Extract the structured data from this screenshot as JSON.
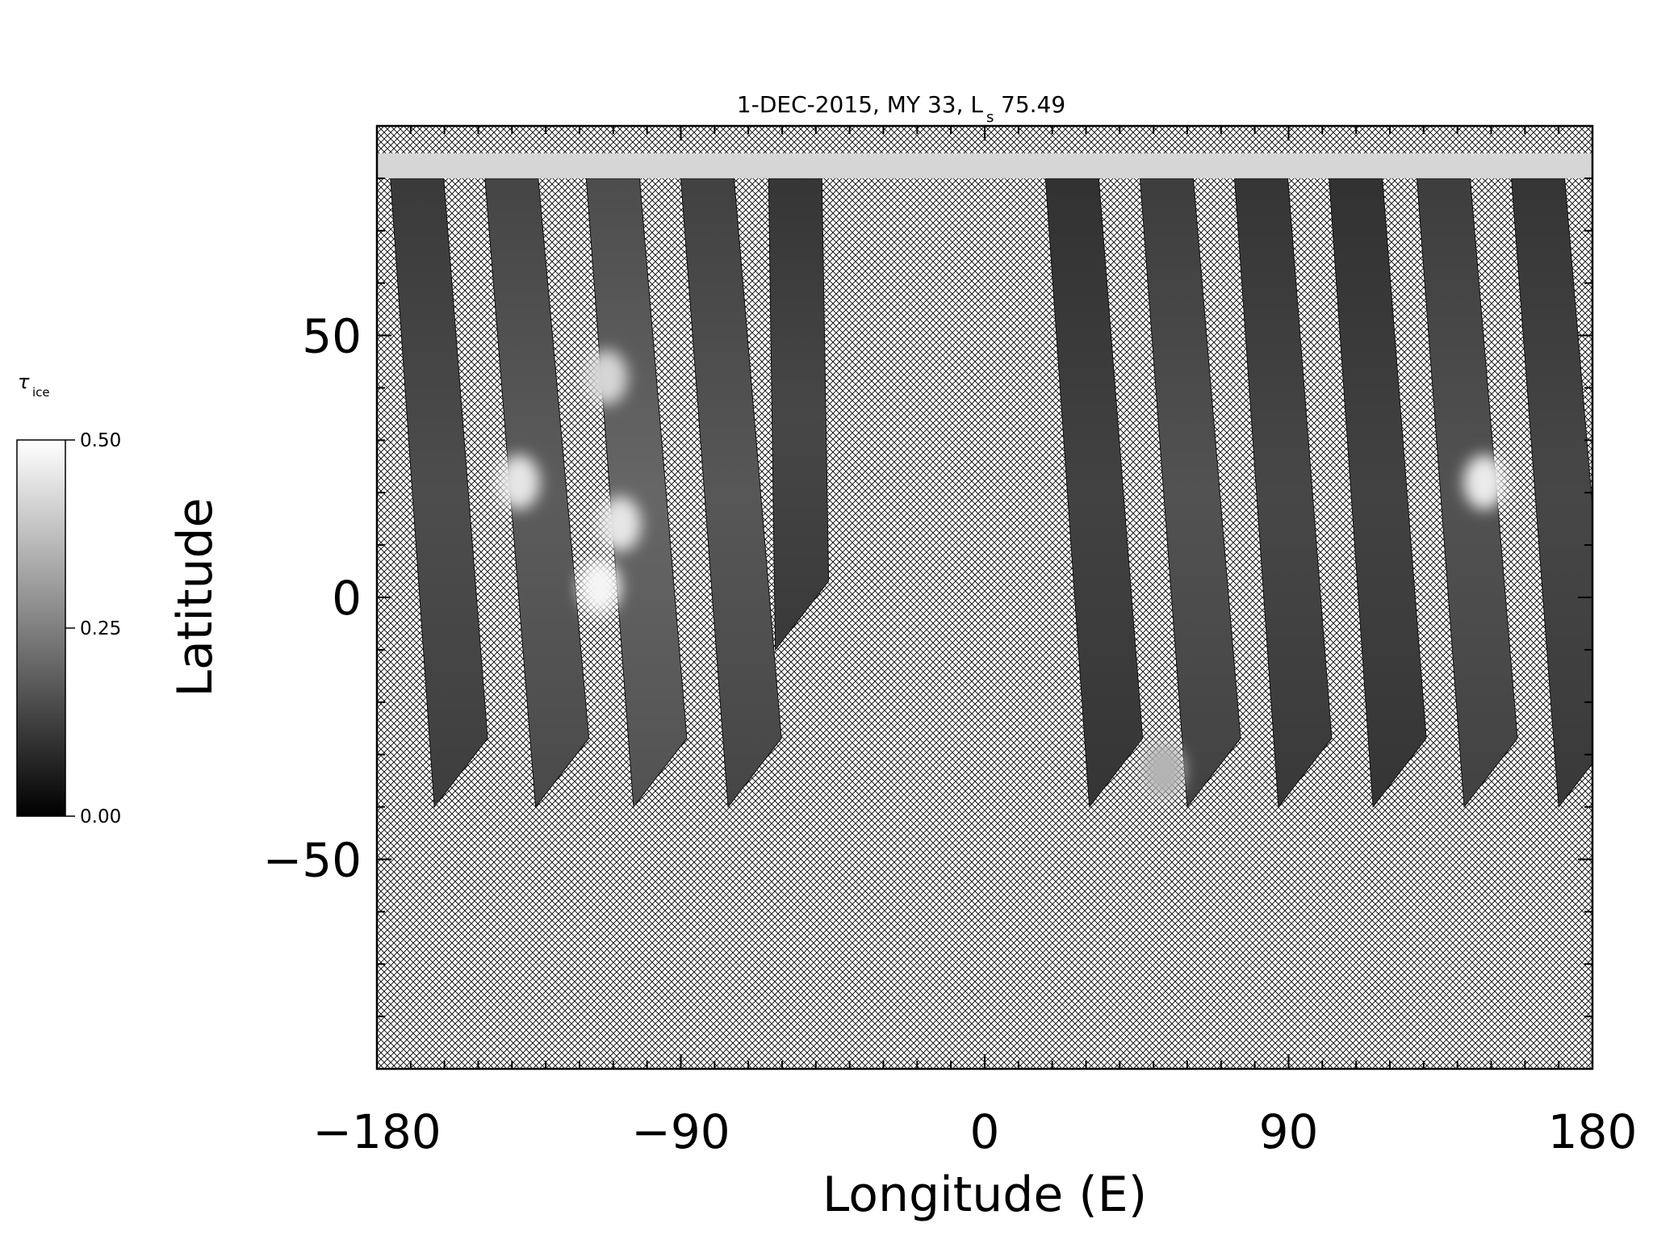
{
  "chart_data": {
    "type": "heatmap",
    "title": "1-DEC-2015, MY 33,  L",
    "title_subscript": "s",
    "title_value": "75.49",
    "xlabel": "Longitude (E)",
    "ylabel": "Latitude",
    "xlim": [
      -180,
      180
    ],
    "ylim": [
      -90,
      90
    ],
    "xticks": [
      {
        "value": -180,
        "label": "−180"
      },
      {
        "value": -90,
        "label": "−90"
      },
      {
        "value": 0,
        "label": "0"
      },
      {
        "value": 90,
        "label": "90"
      },
      {
        "value": 180,
        "label": "180"
      }
    ],
    "yticks": [
      {
        "value": 50,
        "label": "50"
      },
      {
        "value": 0,
        "label": "0"
      },
      {
        "value": -50,
        "label": "−50"
      }
    ],
    "colorbar": {
      "label": "τ",
      "label_subscript": "ice",
      "min": 0.0,
      "max": 0.5,
      "ticks": [
        {
          "value": 0.5,
          "label": "0.50"
        },
        {
          "value": 0.25,
          "label": "0.25"
        },
        {
          "value": 0.0,
          "label": "0.00"
        }
      ],
      "colormap": "grayscale"
    },
    "no_data_fill": "crosshatch",
    "grid": false,
    "polar_cap_lat_min": 80,
    "swaths": [
      {
        "lon_top": -176,
        "lon_bottom": -163,
        "lat_top": 80,
        "lat_bottom": -40,
        "tau": 0.15
      },
      {
        "lon_top": -148,
        "lon_bottom": -133,
        "lat_top": 80,
        "lat_bottom": -40,
        "tau": 0.18
      },
      {
        "lon_top": -118,
        "lon_bottom": -104,
        "lat_top": 80,
        "lat_bottom": -40,
        "tau": 0.2
      },
      {
        "lon_top": -90,
        "lon_bottom": -76,
        "lat_top": 80,
        "lat_bottom": -40,
        "tau": 0.17
      },
      {
        "lon_top": -64,
        "lon_bottom": -62,
        "lat_top": 80,
        "lat_bottom": -10,
        "tau": 0.14
      },
      {
        "lon_top": 18,
        "lon_bottom": 31,
        "lat_top": 80,
        "lat_bottom": -40,
        "tau": 0.13
      },
      {
        "lon_top": 46,
        "lon_bottom": 60,
        "lat_top": 80,
        "lat_bottom": -40,
        "tau": 0.16
      },
      {
        "lon_top": 74,
        "lon_bottom": 87,
        "lat_top": 80,
        "lat_bottom": -40,
        "tau": 0.14
      },
      {
        "lon_top": 102,
        "lon_bottom": 115,
        "lat_top": 80,
        "lat_bottom": -40,
        "tau": 0.13
      },
      {
        "lon_top": 128,
        "lon_bottom": 142,
        "lat_top": 80,
        "lat_bottom": -40,
        "tau": 0.16
      },
      {
        "lon_top": 156,
        "lon_bottom": 170,
        "lat_top": 80,
        "lat_bottom": -40,
        "tau": 0.14
      }
    ],
    "bright_clouds": [
      {
        "lon": -138,
        "lat": 22,
        "tau": 0.45
      },
      {
        "lon": -112,
        "lat": 42,
        "tau": 0.42
      },
      {
        "lon": -108,
        "lat": 14,
        "tau": 0.45
      },
      {
        "lon": -114,
        "lat": 2,
        "tau": 0.48
      },
      {
        "lon": 148,
        "lat": 22,
        "tau": 0.46
      },
      {
        "lon": 53,
        "lat": -33,
        "tau": 0.35
      }
    ]
  }
}
